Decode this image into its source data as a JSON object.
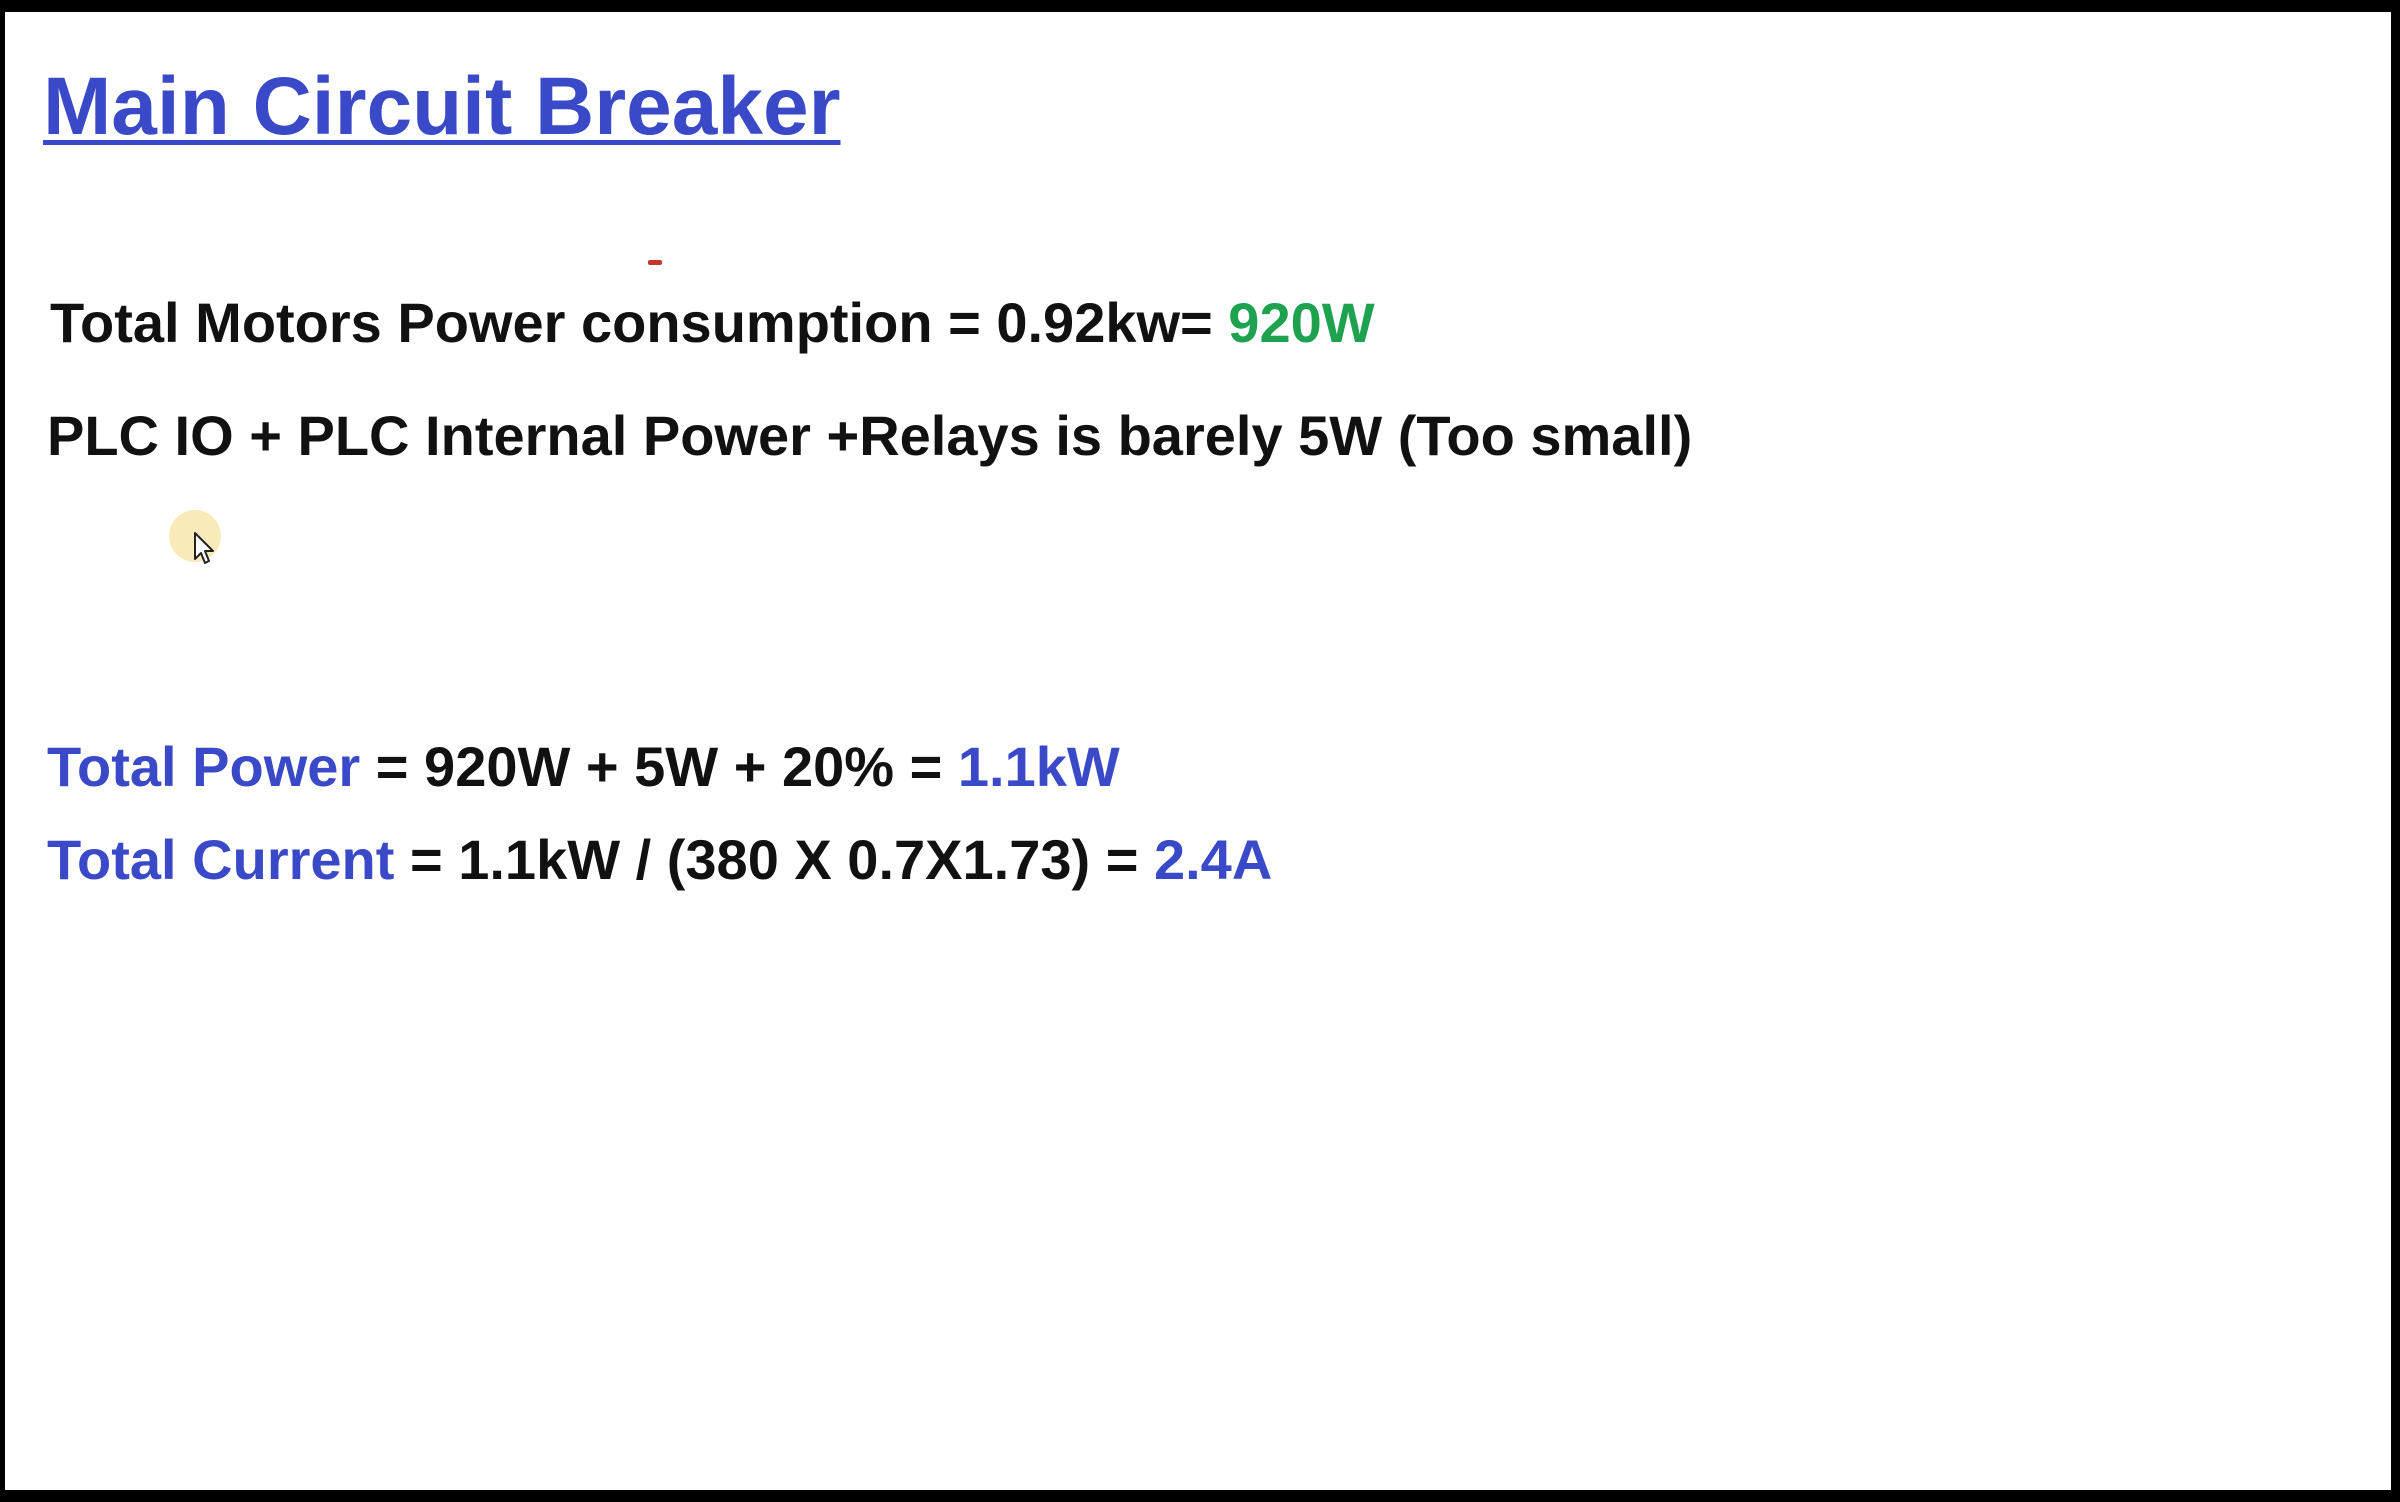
{
  "slide": {
    "title": "Main Circuit Breaker",
    "motors_line": {
      "text": "Total Motors Power consumption = 0.92kw= ",
      "highlight": "920W",
      "highlight_color": "#1ea24f"
    },
    "plc_line": {
      "text": "PLC IO + PLC Internal Power +Relays is barely 5W (Too small)"
    },
    "total_power_line": {
      "label": "Total Power",
      "expression": " = 920W + 5W + 20% = ",
      "result": "1.1kW"
    },
    "total_current_line": {
      "label": "Total Current",
      "expression": " = 1.1kW / (380 X 0.7X1.73) = ",
      "result": "2.4A"
    },
    "accent_color": "#3a49c8",
    "cursor_icon": "mouse-pointer-icon"
  }
}
